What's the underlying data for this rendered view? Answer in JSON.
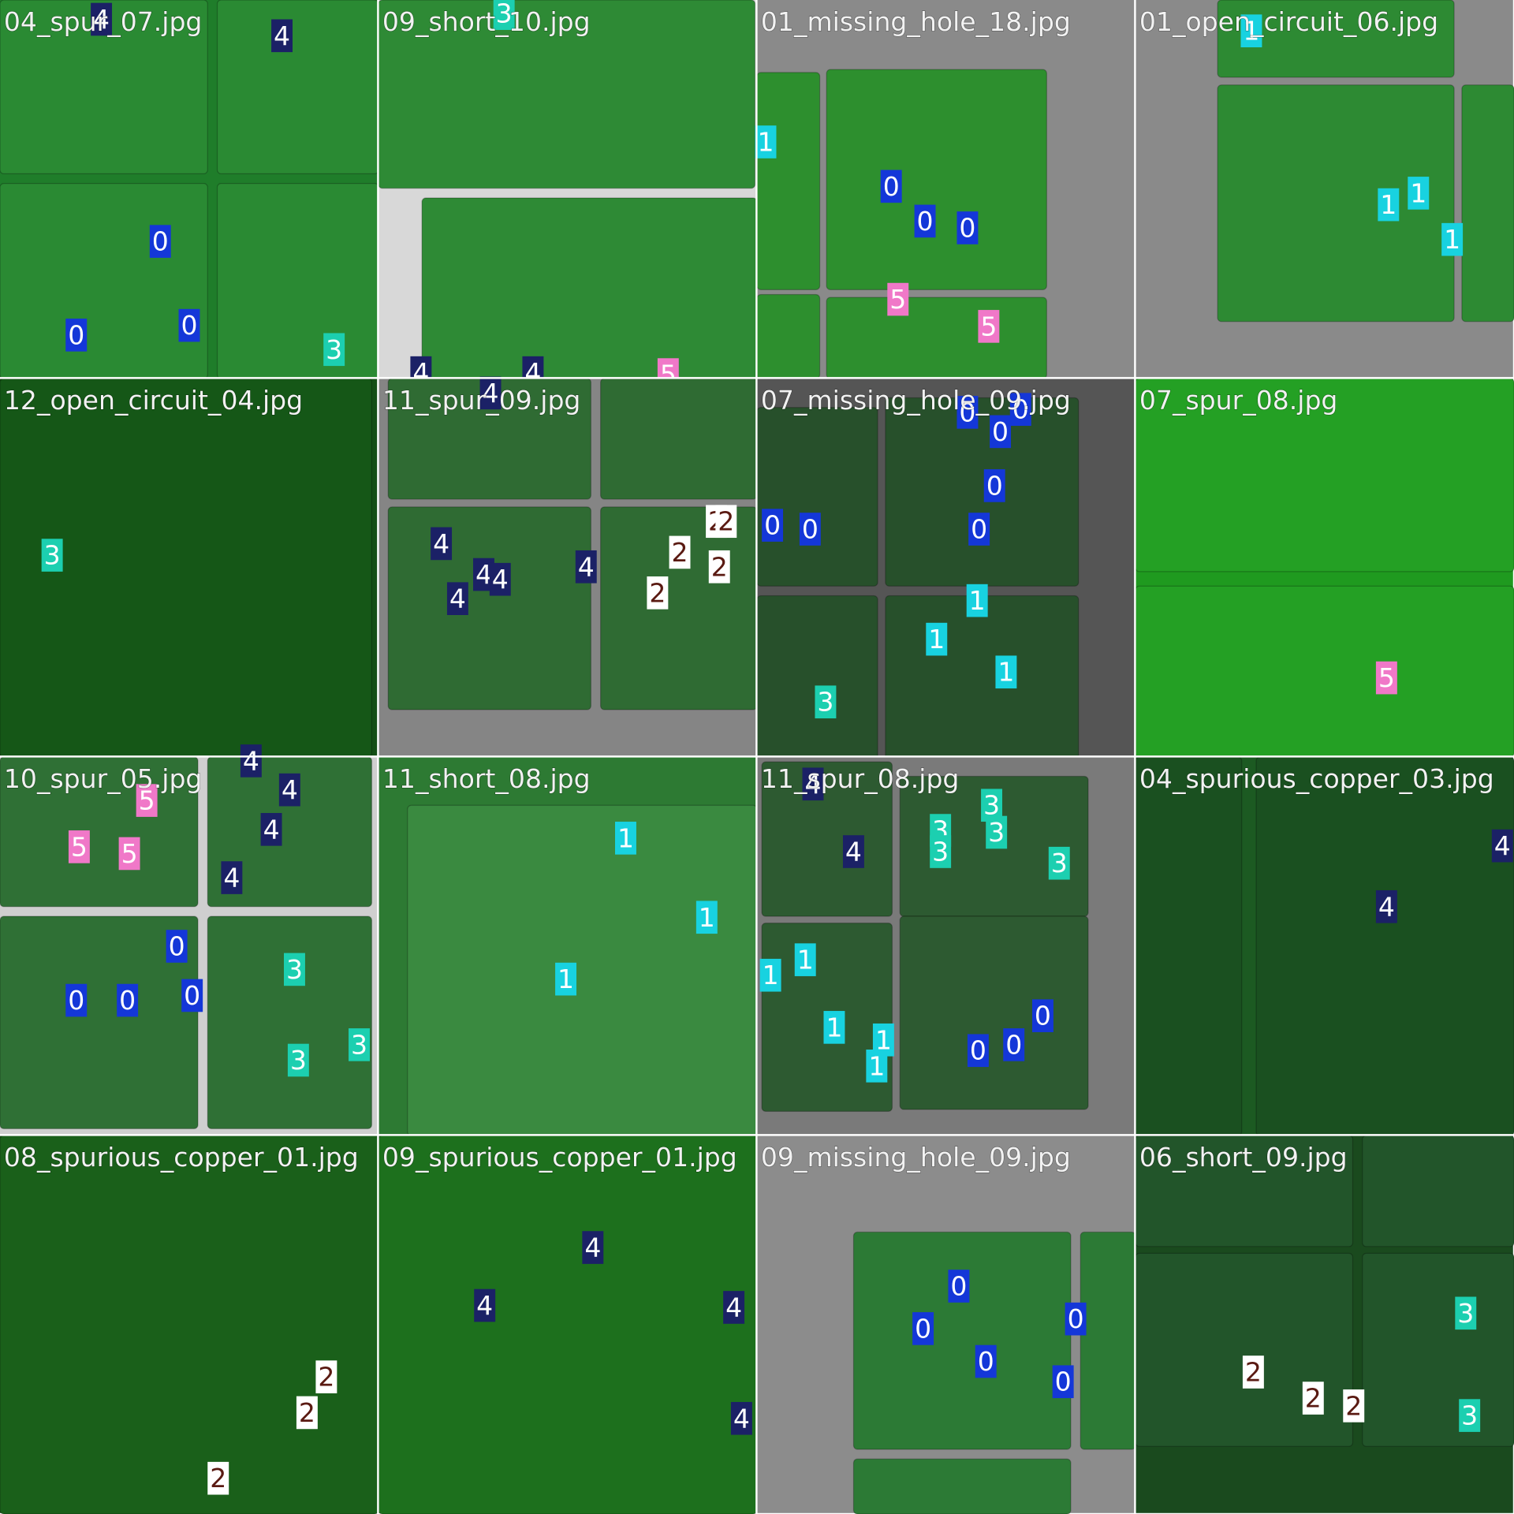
{
  "tiles": [
    {
      "filename": "04_spur_07.jpg",
      "labels": [
        "4",
        "4",
        "0",
        "0",
        "0",
        "3"
      ]
    },
    {
      "filename": "09_short_10.jpg",
      "labels": [
        "3",
        "4",
        "4",
        "5"
      ]
    },
    {
      "filename": "01_missing_hole_18.jpg",
      "labels": [
        "1",
        "0",
        "0",
        "0",
        "5",
        "5"
      ]
    },
    {
      "filename": "01_open_circuit_06.jpg",
      "labels": [
        "1",
        "1",
        "1",
        "1"
      ]
    },
    {
      "filename": "12_open_circuit_04.jpg",
      "labels": [
        "3"
      ]
    },
    {
      "filename": "11_spur_09.jpg",
      "labels": [
        "4",
        "4",
        "4",
        "4",
        "4",
        "4",
        "2",
        "2",
        "2",
        "2",
        "2"
      ]
    },
    {
      "filename": "07_missing_hole_09.jpg",
      "labels": [
        "0",
        "0",
        "0",
        "0",
        "0",
        "0",
        "0",
        "1",
        "1",
        "1",
        "3"
      ]
    },
    {
      "filename": "07_spur_08.jpg",
      "labels": [
        "5"
      ]
    },
    {
      "filename": "10_spur_05.jpg",
      "labels": [
        "4",
        "4",
        "4",
        "4",
        "5",
        "5",
        "5",
        "0",
        "0",
        "0",
        "0",
        "3",
        "3",
        "3"
      ]
    },
    {
      "filename": "11_short_08.jpg",
      "labels": [
        "1",
        "1",
        "1"
      ]
    },
    {
      "filename": "11_spur_08.jpg",
      "labels": [
        "4",
        "4",
        "3",
        "3",
        "3",
        "3",
        "3",
        "1",
        "1",
        "1",
        "1",
        "1",
        "0",
        "0",
        "0"
      ]
    },
    {
      "filename": "04_spurious_copper_03.jpg",
      "labels": [
        "4",
        "4"
      ]
    },
    {
      "filename": "08_spurious_copper_01.jpg",
      "labels": [
        "2",
        "2",
        "2"
      ]
    },
    {
      "filename": "09_spurious_copper_01.jpg",
      "labels": [
        "4",
        "4",
        "4",
        "4"
      ]
    },
    {
      "filename": "09_missing_hole_09.jpg",
      "labels": [
        "0",
        "0",
        "0",
        "0",
        "0"
      ]
    },
    {
      "filename": "06_short_09.jpg",
      "labels": [
        "3",
        "3",
        "2",
        "2",
        "2"
      ]
    }
  ]
}
